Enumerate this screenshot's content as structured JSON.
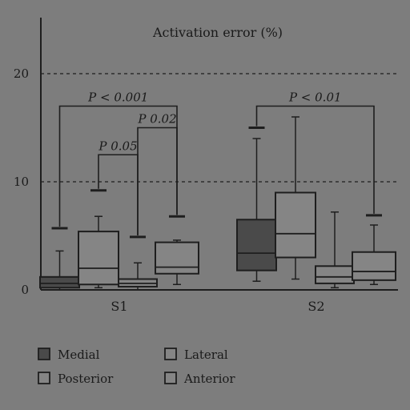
{
  "chart_data": {
    "type": "box",
    "title": "Activation error (%)",
    "xlabel": "",
    "ylabel": "",
    "ylim": [
      0,
      25
    ],
    "yticks": [
      0,
      10,
      20
    ],
    "grid": "dashed horizontal at 10 and 20",
    "legend_position": "bottom",
    "colors": {
      "Medial": "#4a4a4a",
      "Lateral": "#858585",
      "Posterior": "#858585",
      "Anterior": "#858585"
    },
    "categories": [
      "S1",
      "S2"
    ],
    "series": [
      {
        "name": "Medial",
        "boxes": [
          {
            "group": "S1",
            "whisker_low": 0,
            "q1": 0.2,
            "median": 0.6,
            "q3": 1.2,
            "whisker_high": 3.6,
            "outlier": 5.7
          },
          {
            "group": "S2",
            "whisker_low": 0.8,
            "q1": 1.8,
            "median": 3.4,
            "q3": 6.5,
            "whisker_high": 14.0,
            "outlier": 15.0
          }
        ]
      },
      {
        "name": "Lateral",
        "boxes": [
          {
            "group": "S1",
            "whisker_low": 0.2,
            "q1": 0.5,
            "median": 2.0,
            "q3": 5.4,
            "whisker_high": 6.8,
            "outlier": 9.2
          },
          {
            "group": "S2",
            "whisker_low": 1.0,
            "q1": 3.0,
            "median": 5.2,
            "q3": 9.0,
            "whisker_high": 16.0,
            "outlier": null
          }
        ]
      },
      {
        "name": "Posterior",
        "boxes": [
          {
            "group": "S1",
            "whisker_low": 0,
            "q1": 0.3,
            "median": 0.6,
            "q3": 1.0,
            "whisker_high": 2.5,
            "outlier": 4.9
          },
          {
            "group": "S2",
            "whisker_low": 0.2,
            "q1": 0.6,
            "median": 1.2,
            "q3": 2.2,
            "whisker_high": 7.2,
            "outlier": null
          }
        ]
      },
      {
        "name": "Anterior",
        "boxes": [
          {
            "group": "S1",
            "whisker_low": 0.5,
            "q1": 1.5,
            "median": 2.1,
            "q3": 4.4,
            "whisker_high": 4.6,
            "outlier": 6.8
          },
          {
            "group": "S2",
            "whisker_low": 0.5,
            "q1": 0.9,
            "median": 1.7,
            "q3": 3.5,
            "whisker_high": 6.0,
            "outlier": 6.9
          }
        ]
      }
    ],
    "annotations": [
      {
        "text": "P < 0.001",
        "group": "S1",
        "from": "Medial",
        "to": "Anterior",
        "y": 17.0
      },
      {
        "text": "P 0.02",
        "group": "S1",
        "from": "Posterior",
        "to": "Anterior",
        "y": 15.0
      },
      {
        "text": "P 0.05",
        "group": "S1",
        "from": "Lateral",
        "to": "Posterior",
        "y": 12.5
      },
      {
        "text": "P < 0.01",
        "group": "S2",
        "from": "Medial",
        "to": "Anterior",
        "y": 17.0
      }
    ]
  }
}
